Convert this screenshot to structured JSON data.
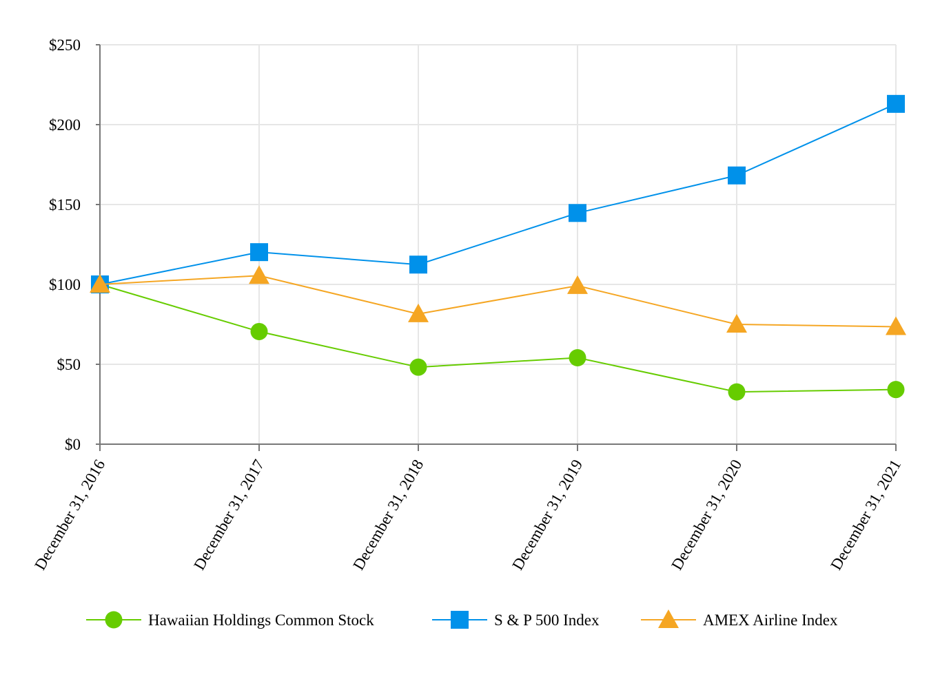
{
  "chart_data": {
    "type": "line",
    "title": "",
    "xlabel": "",
    "ylabel": "",
    "categories": [
      "December 31, 2016",
      "December 31, 2017",
      "December 31, 2018",
      "December 31, 2019",
      "December 31, 2020",
      "December 31, 2021"
    ],
    "ylim": [
      0,
      250
    ],
    "yticks": [
      0,
      50,
      100,
      150,
      200,
      250
    ],
    "ytick_labels": [
      "$0",
      "$50",
      "$100",
      "$150",
      "$200",
      "$250"
    ],
    "grid": true,
    "legend_position": "bottom",
    "series": [
      {
        "name": "Hawaiian Holdings Common Stock",
        "color": "#66cc00",
        "marker": "circle",
        "values": [
          100,
          70.5,
          48.2,
          54.1,
          32.7,
          34.2
        ]
      },
      {
        "name": "S & P 500 Index",
        "color": "#0091ea",
        "marker": "square",
        "values": [
          100,
          120.2,
          112.4,
          144.7,
          168.2,
          213.0
        ]
      },
      {
        "name": "AMEX Airline Index",
        "color": "#f5a623",
        "marker": "triangle",
        "values": [
          100,
          105.5,
          81.5,
          99.2,
          75.0,
          73.5
        ]
      }
    ]
  }
}
